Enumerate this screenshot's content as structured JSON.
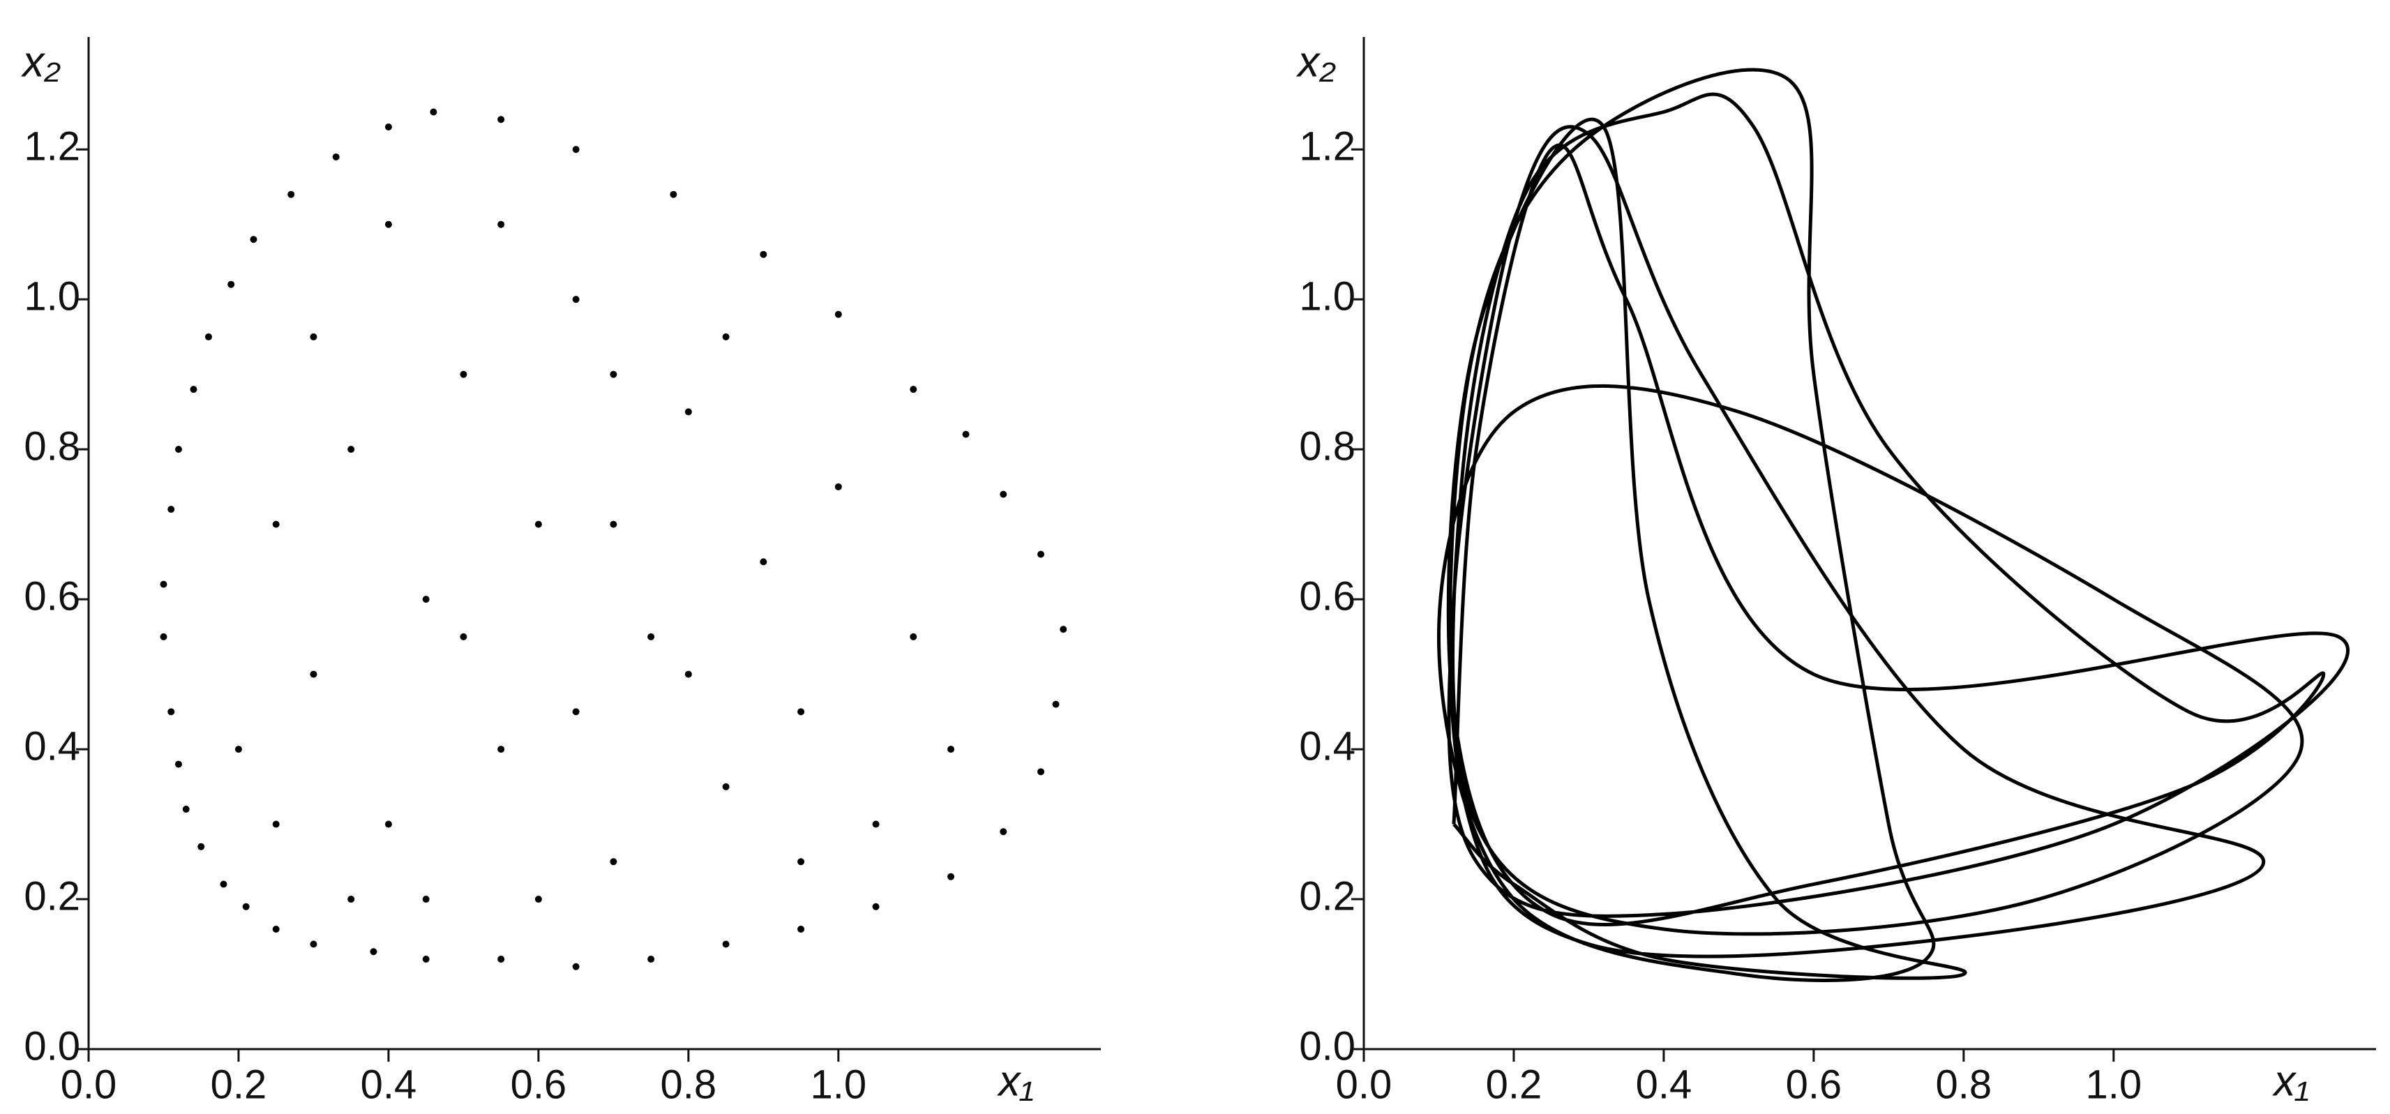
{
  "chart_data": [
    {
      "type": "scatter",
      "x_label": "x₁",
      "y_label": "x₂",
      "color": "#000000",
      "xlim": [
        0,
        1.35
      ],
      "ylim": [
        0,
        1.35
      ],
      "xticks": [
        {
          "value": 0,
          "label": "0.0"
        },
        0.2,
        0.4,
        0.6,
        0.8,
        {
          "value": 1,
          "label": "1.0"
        }
      ],
      "yticks": [
        {
          "value": 0,
          "label": "0.0"
        },
        0.2,
        0.4,
        0.6,
        0.8,
        {
          "value": 1,
          "label": "1.0"
        },
        1.2
      ],
      "series": [
        {
          "x": [
            0.1,
            0.1,
            0.11,
            0.11,
            0.12,
            0.12,
            0.13,
            0.14,
            0.15,
            0.16,
            0.18,
            0.19,
            0.21,
            0.22,
            0.25,
            0.27,
            0.3,
            0.33,
            0.38,
            0.4,
            0.45,
            0.46,
            0.55,
            0.55,
            0.65,
            0.65,
            0.75,
            0.78,
            0.85,
            0.9,
            0.95,
            1.0,
            1.05,
            1.1,
            1.15,
            1.17,
            1.22,
            1.22,
            1.27,
            1.27,
            1.29,
            1.3,
            0.3,
            0.35,
            0.4,
            0.45,
            0.5,
            0.55,
            0.6,
            0.65,
            0.7,
            0.75,
            0.8,
            0.85,
            0.9,
            0.95,
            1.0,
            1.05,
            1.1,
            0.25,
            0.2,
            0.3,
            0.4,
            0.55,
            0.7,
            0.85,
            0.6,
            0.45,
            0.35,
            1.15,
            0.5,
            0.65,
            0.8,
            0.95,
            0.25,
            0.7
          ],
          "y": [
            0.55,
            0.62,
            0.45,
            0.72,
            0.38,
            0.8,
            0.32,
            0.88,
            0.27,
            0.95,
            0.22,
            1.02,
            0.19,
            1.08,
            0.16,
            1.14,
            0.14,
            1.19,
            0.13,
            1.23,
            0.12,
            1.25,
            0.12,
            1.24,
            0.11,
            1.2,
            0.12,
            1.14,
            0.14,
            1.06,
            0.16,
            0.98,
            0.19,
            0.88,
            0.23,
            0.82,
            0.29,
            0.74,
            0.37,
            0.66,
            0.46,
            0.56,
            0.5,
            0.8,
            0.3,
            0.6,
            0.9,
            0.4,
            0.7,
            1.0,
            0.25,
            0.55,
            0.85,
            0.35,
            0.65,
            0.45,
            0.75,
            0.3,
            0.55,
            0.7,
            0.4,
            0.95,
            1.1,
            1.1,
            0.9,
            0.95,
            0.2,
            0.2,
            0.2,
            0.4,
            0.55,
            0.45,
            0.5,
            0.25,
            0.3,
            0.7
          ]
        }
      ]
    },
    {
      "type": "line",
      "x_label": "x₁",
      "y_label": "x₂",
      "color": "#000000",
      "xlim": [
        0,
        1.35
      ],
      "ylim": [
        0,
        1.35
      ],
      "xticks": [
        {
          "value": 0,
          "label": "0.0"
        },
        0.2,
        0.4,
        0.6,
        0.8,
        {
          "value": 1,
          "label": "1.0"
        }
      ],
      "yticks": [
        {
          "value": 0,
          "label": "0.0"
        },
        0.2,
        0.4,
        0.6,
        0.8,
        {
          "value": 1,
          "label": "1.0"
        },
        1.2
      ],
      "series": [
        {
          "x": [
            0.12,
            0.15,
            0.25,
            0.35,
            0.6,
            1.3,
            1.0,
            0.4,
            0.15,
            0.12,
            0.2,
            0.3,
            0.45,
            0.8,
            1.2,
            0.8,
            0.3,
            0.13,
            0.14,
            0.28,
            0.57,
            0.6,
            0.7,
            0.75,
            0.5,
            0.2,
            0.1,
            0.2,
            0.5,
            1.0,
            1.25,
            0.9,
            0.4,
            0.15,
            0.13,
            0.22,
            0.4,
            0.52,
            0.7,
            1.1,
            1.28,
            1.1,
            0.6,
            0.25,
            0.12,
            0.15,
            0.32,
            0.38,
            0.55,
            0.8,
            0.4,
            0.2,
            0.12
          ],
          "y": [
            0.3,
            0.8,
            1.2,
            1.0,
            0.5,
            0.55,
            0.3,
            0.18,
            0.25,
            0.6,
            1.1,
            1.22,
            0.9,
            0.4,
            0.25,
            0.15,
            0.14,
            0.35,
            0.9,
            1.2,
            1.29,
            0.9,
            0.3,
            0.12,
            0.1,
            0.2,
            0.55,
            0.85,
            0.85,
            0.6,
            0.4,
            0.2,
            0.16,
            0.3,
            0.75,
            1.15,
            1.25,
            1.23,
            0.8,
            0.45,
            0.5,
            0.35,
            0.22,
            0.18,
            0.45,
            0.95,
            1.23,
            0.6,
            0.2,
            0.1,
            0.12,
            0.22,
            0.3
          ]
        }
      ]
    }
  ]
}
